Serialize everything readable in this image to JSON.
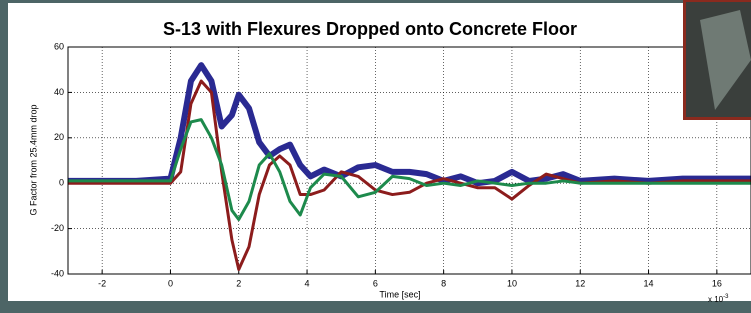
{
  "chart_data": {
    "type": "line",
    "title": "S-13 with Flexures Dropped onto Concrete Floor",
    "x_label": "Time [sec]",
    "y_label": "G Factor from 25.4mm drop",
    "x_multiplier": {
      "base": "x 10",
      "exponent": "-3"
    },
    "x": [
      -3,
      -2,
      -1,
      0,
      0.3,
      0.6,
      0.9,
      1.2,
      1.5,
      1.8,
      2.0,
      2.3,
      2.6,
      2.9,
      3.2,
      3.5,
      3.8,
      4.1,
      4.5,
      5,
      5.5,
      6,
      6.5,
      7,
      7.5,
      8,
      8.5,
      9,
      9.5,
      10,
      10.5,
      11,
      11.5,
      12,
      13,
      14,
      15,
      16,
      17
    ],
    "series": [
      {
        "color": "#2a2a92",
        "width": 6,
        "values": [
          1,
          1,
          1,
          2,
          20,
          45,
          52,
          45,
          25,
          30,
          39,
          33,
          18,
          12,
          15,
          17,
          8,
          3,
          6,
          3,
          7,
          8,
          5,
          5,
          4,
          1,
          3,
          0,
          1,
          5,
          1,
          2,
          4,
          1,
          2,
          1,
          2,
          2,
          2
        ]
      },
      {
        "color": "#8c1c1c",
        "width": 3,
        "values": [
          0,
          0,
          0,
          0,
          5,
          35,
          45,
          40,
          5,
          -25,
          -38,
          -28,
          -5,
          8,
          12,
          8,
          -5,
          -5,
          -3,
          5,
          3,
          -3,
          -5,
          -4,
          0,
          2,
          0,
          -2,
          -2,
          -7,
          -1,
          4,
          2,
          0,
          1,
          0,
          1,
          1,
          1
        ]
      },
      {
        "color": "#1d8a4c",
        "width": 3,
        "values": [
          1,
          1,
          1,
          1,
          15,
          27,
          28,
          20,
          8,
          -12,
          -16,
          -8,
          8,
          13,
          5,
          -8,
          -14,
          -2,
          4,
          3,
          -6,
          -4,
          3,
          2,
          -1,
          0,
          -1,
          1,
          0,
          -1,
          0,
          0,
          1,
          0,
          0,
          0,
          0,
          0,
          0
        ]
      }
    ],
    "xlim": [
      -3,
      17
    ],
    "xticks": [
      -2,
      0,
      2,
      4,
      6,
      8,
      10,
      12,
      14,
      16
    ],
    "ylim": [
      -40,
      60
    ],
    "yticks": [
      -40,
      -20,
      0,
      20,
      40,
      60
    ],
    "grid": true
  }
}
